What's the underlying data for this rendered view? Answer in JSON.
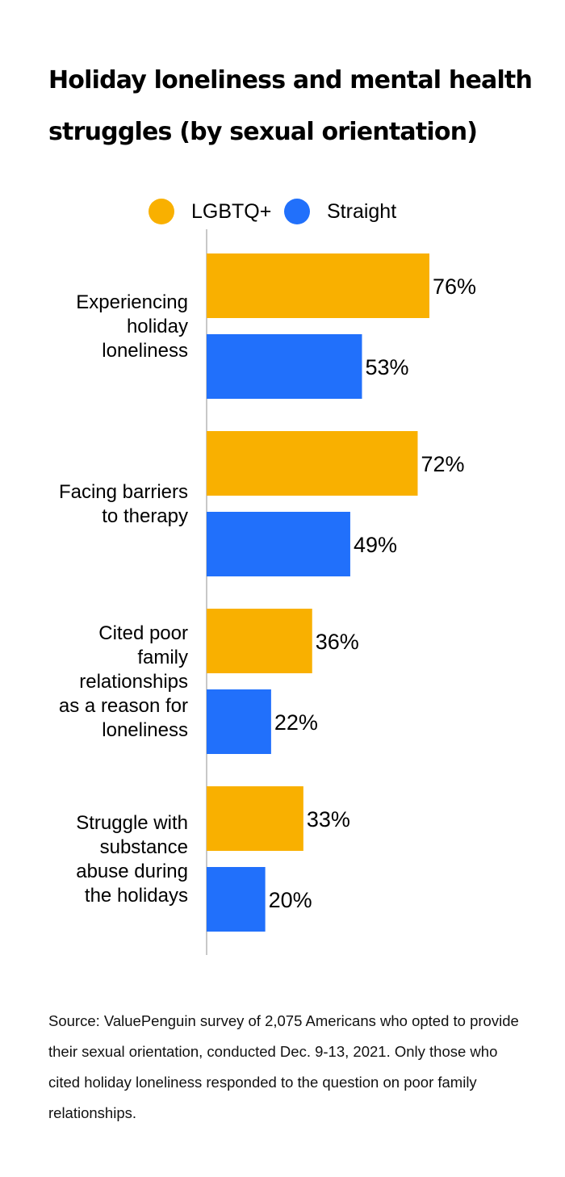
{
  "chart_data": {
    "type": "bar",
    "orientation": "horizontal",
    "title": "Holiday loneliness and mental health struggles (by sexual orientation)",
    "categories": [
      "Experiencing holiday loneliness",
      "Facing barriers to therapy",
      "Cited poor family relationships as a reason for loneliness",
      "Struggle with substance abuse during the holidays"
    ],
    "category_lines": [
      [
        "Experiencing",
        "holiday",
        "loneliness"
      ],
      [
        "Facing barriers",
        "to therapy"
      ],
      [
        "Cited poor",
        "family",
        "relationships",
        "as a reason for",
        "loneliness"
      ],
      [
        "Struggle with",
        "substance",
        "abuse during",
        "the holidays"
      ]
    ],
    "series": [
      {
        "name": "LGBTQ+",
        "color": "#F9B000",
        "values": [
          76,
          72,
          36,
          33
        ]
      },
      {
        "name": "Straight",
        "color": "#2170FB",
        "values": [
          53,
          49,
          22,
          20
        ]
      }
    ],
    "value_suffix": "%",
    "xlim": [
      0,
      100
    ],
    "grid": false,
    "legend_position": "top",
    "source": "Source: ValuePenguin survey of 2,075 Americans who opted to provide their sexual orientation, conducted Dec. 9-13, 2021. Only those who cited holiday loneliness responded to the question on poor family relationships."
  }
}
